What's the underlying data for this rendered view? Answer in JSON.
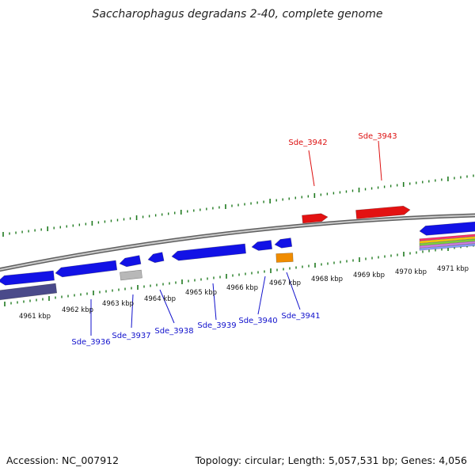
{
  "title": "Saccharophagus degradans 2-40, complete genome",
  "footer": {
    "accession": "Accession: NC_007912",
    "summary": "Topology: circular; Length: 5,057,531 bp; Genes: 4,056"
  },
  "colors": {
    "backbone": "#8a8a8a",
    "forward_gene": "#e31212",
    "reverse_gene": "#1212e6",
    "tick": "#1f7a1f",
    "reverse_label": "#1111cc",
    "forward_label": "#dd1111",
    "rna_gene": "#f08c00",
    "pseudo_gene": "#b8b8b8",
    "cds_track": "#4a4a8a"
  },
  "scale_labels": [
    "4961 kbp",
    "4962 kbp",
    "4963 kbp",
    "4964 kbp",
    "4965 kbp",
    "4966 kbp",
    "4967 kbp",
    "4968 kbp",
    "4969 kbp",
    "4970 kbp",
    "4971 kbp"
  ],
  "gene_labels": {
    "forward": [
      "Sde_3942",
      "Sde_3943"
    ],
    "reverse": [
      "Sde_3936",
      "Sde_3937",
      "Sde_3938",
      "Sde_3939",
      "Sde_3940",
      "Sde_3941"
    ]
  }
}
